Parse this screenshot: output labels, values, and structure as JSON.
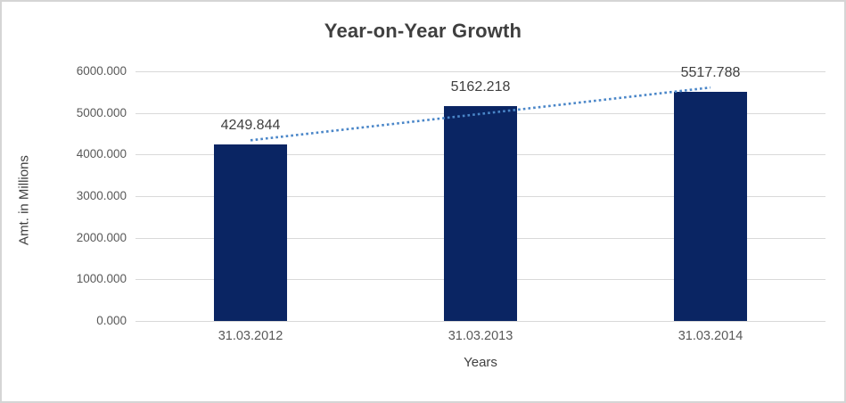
{
  "frame": {
    "border_color": "#d5d5d5",
    "background_color": "#ffffff"
  },
  "chart_data": {
    "type": "bar",
    "title": "Year-on-Year Growth",
    "xlabel": "Years",
    "ylabel": "Amt. in Millions",
    "categories": [
      "31.03.2012",
      "31.03.2013",
      "31.03.2014"
    ],
    "values": [
      4249.844,
      5162.218,
      5517.788
    ],
    "value_labels": [
      "4249.844",
      "5162.218",
      "5517.788"
    ],
    "ylim": [
      0,
      6000
    ],
    "ytick_labels": [
      "0.000",
      "1000.000",
      "2000.000",
      "3000.000",
      "4000.000",
      "5000.000",
      "6000.000"
    ],
    "grid": true,
    "legend_position": "none",
    "bar_color": "#0a2563",
    "gridline_color": "#d9d9d9",
    "tick_label_color": "#595959",
    "title_color": "#3f3f3f",
    "data_label_color": "#404040",
    "axis_title_color": "#404040",
    "trendline": {
      "type": "linear",
      "style": "dotted",
      "color": "#4a86c8"
    }
  }
}
